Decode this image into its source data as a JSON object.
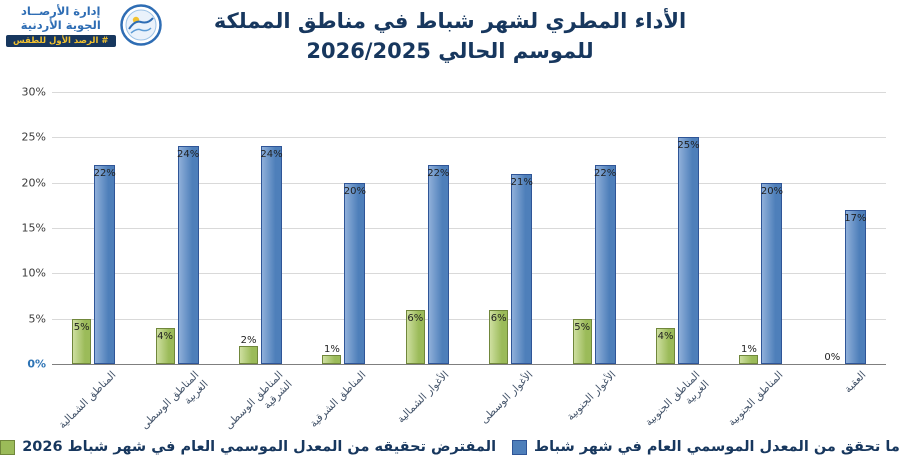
{
  "header": {
    "org_name_line1": "إدارة الأرصــاد",
    "org_name_line2": "الجوية الأردنية",
    "ribbon": "# الرصد الأول للطقس",
    "title_line1": "الأداء المطري لشهر شباط في مناطق المملكة",
    "title_line2": "للموسم الحالي 2026/2025"
  },
  "chart_data": {
    "type": "bar",
    "title": "الأداء المطري لشهر شباط في مناطق المملكة للموسم الحالي 2026/2025",
    "categories": [
      "المناطق الشمالية",
      "المناطق الوسطى الغربية",
      "المناطق الوسطى الشرقية",
      "المناطق الشرقية",
      "الأغوار الشمالية",
      "الأغوار الوسطى",
      "الأغوار الجنوبية",
      "المناطق الجنوبية الغربية",
      "المناطق الجنوبية",
      "العقبة"
    ],
    "series": [
      {
        "name": "المفترض تحقيقه من المعدل الموسمي العام في شهر شباط 2026",
        "color": "#9bbb59",
        "values": [
          5,
          4,
          2,
          1,
          6,
          6,
          5,
          4,
          1,
          0
        ]
      },
      {
        "name": "ما تحقق من المعدل الموسمي العام في شهر شباط",
        "color": "#4e7fba",
        "values": [
          22,
          24,
          24,
          20,
          22,
          21,
          22,
          25,
          20,
          17
        ]
      }
    ],
    "ylim": [
      0,
      30
    ],
    "ytick_step": 5,
    "ytick_labels": [
      "0%",
      "5%",
      "10%",
      "15%",
      "20%",
      "25%",
      "30%"
    ],
    "value_suffix": "%",
    "grid": true,
    "legend_position": "bottom"
  }
}
